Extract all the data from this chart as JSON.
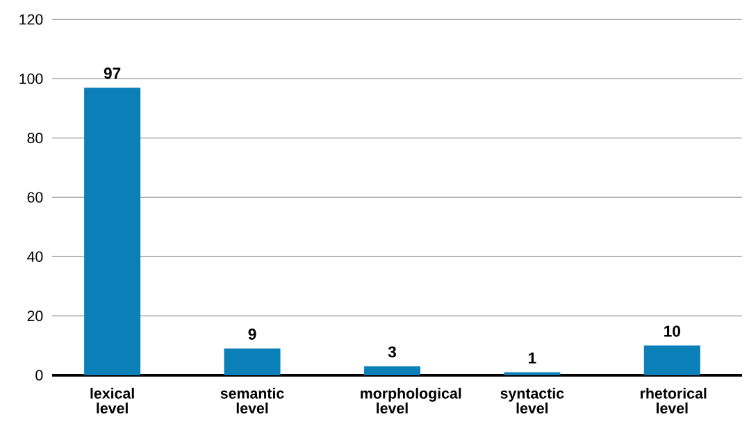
{
  "chart_data": {
    "type": "bar",
    "categories": [
      "lexical level",
      "semantic level",
      "morphological level",
      "syntactic level",
      "rhetorical level"
    ],
    "values": [
      97,
      9,
      3,
      1,
      10
    ],
    "color": "#0a7fb8",
    "ylim": [
      0,
      120
    ],
    "yticks": [
      0,
      20,
      40,
      60,
      80,
      100,
      120
    ],
    "grid": "y",
    "data_labels": true
  }
}
